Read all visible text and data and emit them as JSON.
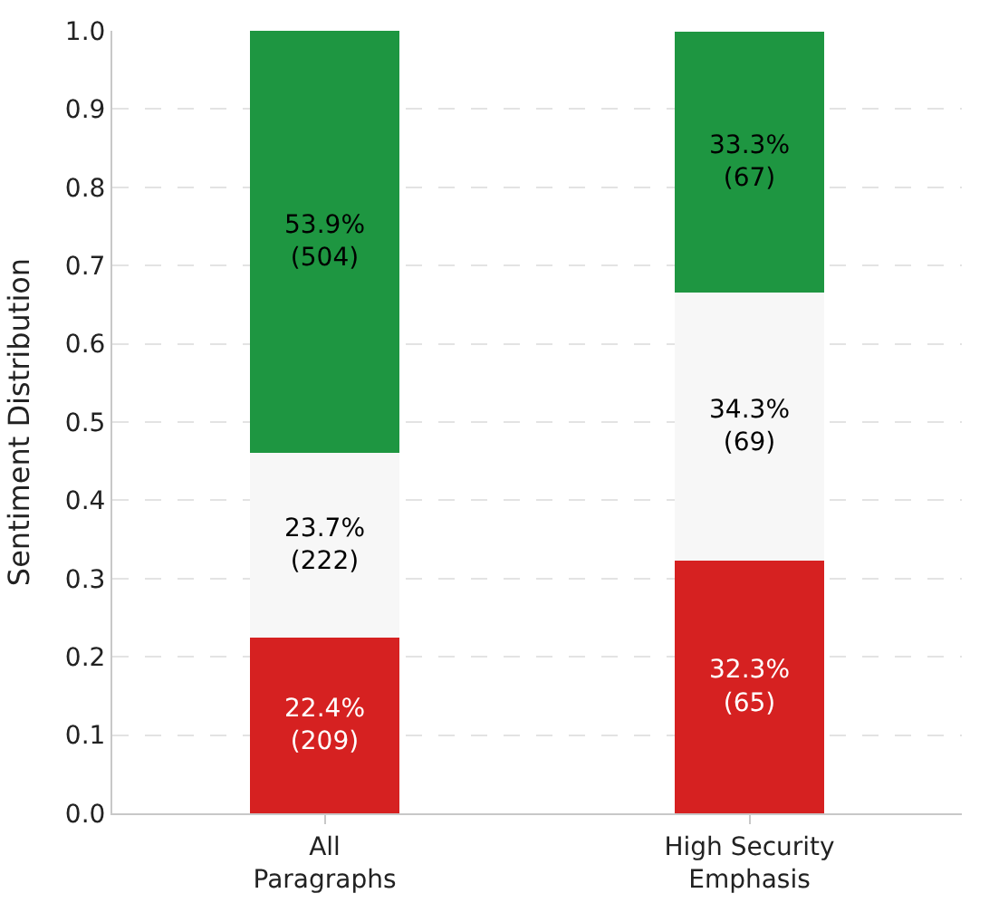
{
  "chart_data": {
    "type": "bar",
    "stacked": true,
    "ylabel": "Sentiment Distribution",
    "categories": [
      "All\nParagraphs",
      "High Security\nEmphasis"
    ],
    "series": [
      {
        "color": "#d62121",
        "values": [
          0.224,
          0.323
        ],
        "value_labels": [
          "22.4%\n(209)",
          "32.3%\n(65)"
        ]
      },
      {
        "color": "#f7f7f7",
        "values": [
          0.237,
          0.343
        ],
        "value_labels": [
          "23.7%\n(222)",
          "34.3%\n(69)"
        ]
      },
      {
        "color": "#1e9641",
        "values": [
          0.539,
          0.333
        ],
        "value_labels": [
          "53.9%\n(504)",
          "33.3%\n(67)"
        ]
      }
    ],
    "ylim": [
      0,
      1
    ],
    "yticks": [
      {
        "value": 0,
        "label": "0.0"
      },
      {
        "value": 0.1,
        "label": "0.1"
      },
      {
        "value": 0.2,
        "label": "0.2"
      },
      {
        "value": 0.3,
        "label": "0.3"
      },
      {
        "value": 0.4,
        "label": "0.4"
      },
      {
        "value": 0.5,
        "label": "0.5"
      },
      {
        "value": 0.6,
        "label": "0.6"
      },
      {
        "value": 0.7,
        "label": "0.7"
      },
      {
        "value": 0.8,
        "label": "0.8"
      },
      {
        "value": 0.9,
        "label": "0.9"
      },
      {
        "value": 1,
        "label": "1.0"
      }
    ],
    "grid": "y"
  }
}
